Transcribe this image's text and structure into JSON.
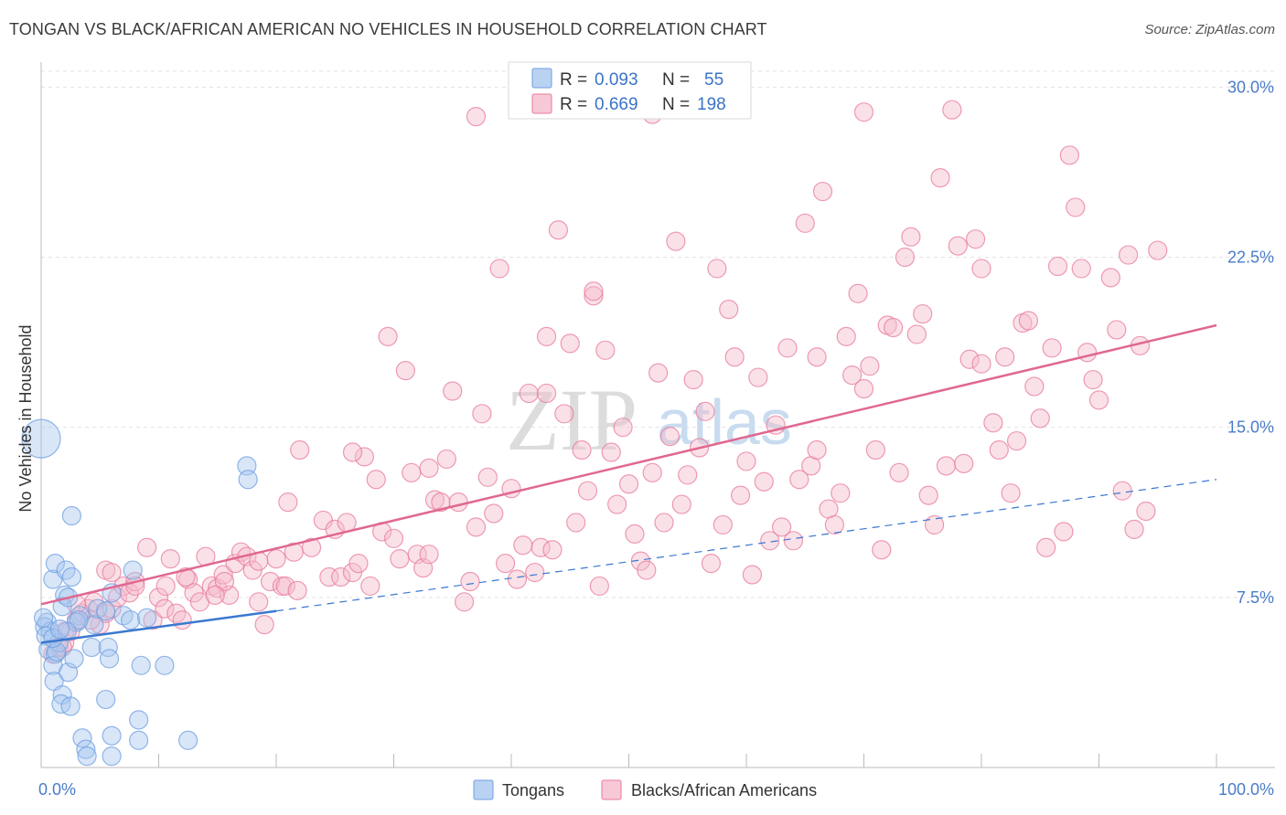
{
  "title": "TONGAN VS BLACK/AFRICAN AMERICAN NO VEHICLES IN HOUSEHOLD CORRELATION CHART",
  "source": "Source: ZipAtlas.com",
  "watermark": {
    "part1": "ZIP",
    "part2": "atlas"
  },
  "colors": {
    "blue": "#6f9fe0",
    "blue_fill": "#a9c7ef",
    "blue_line": "#3a78d0",
    "pink": "#e8799b",
    "pink_fill": "#f5bccd",
    "pink_line": "#e06890",
    "axis_text": "#4a7cc9"
  },
  "legend": {
    "rows": [
      {
        "r_label": "R =",
        "r_value": "0.093",
        "n_label": "N =",
        "n_value": "55"
      },
      {
        "r_label": "R =",
        "r_value": "0.669",
        "n_label": "N =",
        "n_value": "198"
      }
    ]
  },
  "bottom_legend": [
    "Tongans",
    "Blacks/African Americans"
  ],
  "chart_data": {
    "type": "scatter",
    "title": "TONGAN VS BLACK/AFRICAN AMERICAN NO VEHICLES IN HOUSEHOLD CORRELATION CHART",
    "xlabel": "",
    "ylabel": "No Vehicles in Household",
    "xlim": [
      0,
      100
    ],
    "ylim": [
      0,
      30.7
    ],
    "x_ticks": [
      "0.0%",
      "100.0%"
    ],
    "y_ticks": [
      {
        "value": 7.5,
        "label": "7.5%"
      },
      {
        "value": 15.0,
        "label": "15.0%"
      },
      {
        "value": 22.5,
        "label": "22.5%"
      },
      {
        "value": 30.0,
        "label": "30.0%"
      }
    ],
    "grid": true,
    "series": [
      {
        "name": "Tongans",
        "trend": {
          "x": [
            0,
            20
          ],
          "y": [
            5.5,
            6.9
          ],
          "dashed_to": [
            100,
            12.7
          ]
        },
        "points": [
          [
            0.0,
            14.5,
            "L"
          ],
          [
            0.5,
            6.4
          ],
          [
            0.3,
            6.2
          ],
          [
            0.8,
            6.0
          ],
          [
            0.4,
            5.8
          ],
          [
            0.6,
            5.2
          ],
          [
            1.2,
            5.0
          ],
          [
            1.5,
            5.5
          ],
          [
            1.0,
            8.3
          ],
          [
            1.2,
            9.0
          ],
          [
            2.0,
            7.6
          ],
          [
            2.1,
            8.7
          ],
          [
            2.6,
            8.4
          ],
          [
            1.8,
            7.1
          ],
          [
            2.3,
            7.5
          ],
          [
            3.3,
            6.7
          ],
          [
            3.0,
            6.4
          ],
          [
            4.5,
            6.3
          ],
          [
            4.8,
            7.0
          ],
          [
            6.0,
            7.7
          ],
          [
            7.0,
            6.7
          ],
          [
            7.6,
            6.5
          ],
          [
            9.0,
            6.6
          ],
          [
            2.6,
            11.1
          ],
          [
            1.0,
            4.5
          ],
          [
            1.1,
            3.8
          ],
          [
            2.3,
            4.2
          ],
          [
            2.8,
            4.8
          ],
          [
            1.3,
            5.1
          ],
          [
            4.3,
            5.3
          ],
          [
            5.7,
            5.3
          ],
          [
            5.8,
            4.8
          ],
          [
            1.8,
            3.2
          ],
          [
            1.7,
            2.8
          ],
          [
            2.5,
            2.7
          ],
          [
            5.5,
            3.0
          ],
          [
            8.5,
            4.5
          ],
          [
            10.5,
            4.5
          ],
          [
            8.3,
            2.1
          ],
          [
            3.5,
            1.3
          ],
          [
            6.0,
            1.4
          ],
          [
            8.3,
            1.2
          ],
          [
            12.5,
            1.2
          ],
          [
            3.8,
            0.8
          ],
          [
            3.9,
            0.5
          ],
          [
            6.0,
            0.5
          ],
          [
            17.5,
            13.3
          ],
          [
            17.6,
            12.7
          ],
          [
            7.8,
            8.7
          ],
          [
            5.5,
            6.9
          ],
          [
            3.2,
            6.5
          ],
          [
            2.2,
            6.0
          ],
          [
            1.0,
            5.7
          ],
          [
            0.2,
            6.6
          ],
          [
            1.6,
            6.1
          ]
        ]
      },
      {
        "name": "Blacks/African Americans",
        "trend": {
          "x": [
            0,
            100
          ],
          "y": [
            7.2,
            19.5
          ]
        },
        "points": [
          [
            1.0,
            5.0
          ],
          [
            1.5,
            5.3
          ],
          [
            2.0,
            5.5
          ],
          [
            2.5,
            6.0
          ],
          [
            3.0,
            6.5
          ],
          [
            3.5,
            6.8
          ],
          [
            4.0,
            7.0
          ],
          [
            4.5,
            7.3
          ],
          [
            5.0,
            6.3
          ],
          [
            5.5,
            6.8
          ],
          [
            6.0,
            7.0
          ],
          [
            6.5,
            7.5
          ],
          [
            7.0,
            8.0
          ],
          [
            7.5,
            7.7
          ],
          [
            8.0,
            8.2
          ],
          [
            9.0,
            9.7
          ],
          [
            5.5,
            8.7
          ],
          [
            9.5,
            6.5
          ],
          [
            10.0,
            7.5
          ],
          [
            10.5,
            7.0
          ],
          [
            11.0,
            9.2
          ],
          [
            11.5,
            6.8
          ],
          [
            12.0,
            6.5
          ],
          [
            12.5,
            8.3
          ],
          [
            13.0,
            7.7
          ],
          [
            13.5,
            7.3
          ],
          [
            14.0,
            9.3
          ],
          [
            14.5,
            8.0
          ],
          [
            15.0,
            7.9
          ],
          [
            15.5,
            8.5
          ],
          [
            16.0,
            7.6
          ],
          [
            16.5,
            9.0
          ],
          [
            17.0,
            9.5
          ],
          [
            17.5,
            9.3
          ],
          [
            18.0,
            8.7
          ],
          [
            18.5,
            7.3
          ],
          [
            19.0,
            6.3
          ],
          [
            19.5,
            8.2
          ],
          [
            20.0,
            9.2
          ],
          [
            20.5,
            8.0
          ],
          [
            21.0,
            11.7
          ],
          [
            21.5,
            9.5
          ],
          [
            22.0,
            14.0
          ],
          [
            23.0,
            9.7
          ],
          [
            24.0,
            10.9
          ],
          [
            24.5,
            8.4
          ],
          [
            25.0,
            10.5
          ],
          [
            25.5,
            8.4
          ],
          [
            26.0,
            10.8
          ],
          [
            26.5,
            8.6
          ],
          [
            27.0,
            9.0
          ],
          [
            27.5,
            13.7
          ],
          [
            28.0,
            8.0
          ],
          [
            28.5,
            12.7
          ],
          [
            29.0,
            10.4
          ],
          [
            29.5,
            19.0
          ],
          [
            30.0,
            10.1
          ],
          [
            30.5,
            9.2
          ],
          [
            31.0,
            17.5
          ],
          [
            31.5,
            13.0
          ],
          [
            32.0,
            9.4
          ],
          [
            32.5,
            8.8
          ],
          [
            33.0,
            13.2
          ],
          [
            33.5,
            11.8
          ],
          [
            34.0,
            11.7
          ],
          [
            34.5,
            13.6
          ],
          [
            35.0,
            16.6
          ],
          [
            35.5,
            11.7
          ],
          [
            36.0,
            7.3
          ],
          [
            36.5,
            8.2
          ],
          [
            37.0,
            10.6
          ],
          [
            37.5,
            15.6
          ],
          [
            38.0,
            12.8
          ],
          [
            38.5,
            11.2
          ],
          [
            39.0,
            22.0
          ],
          [
            39.5,
            9.0
          ],
          [
            40.0,
            12.3
          ],
          [
            40.5,
            8.3
          ],
          [
            41.0,
            9.8
          ],
          [
            41.5,
            16.5
          ],
          [
            42.0,
            8.6
          ],
          [
            42.5,
            9.7
          ],
          [
            43.0,
            19.0
          ],
          [
            43.5,
            9.6
          ],
          [
            44.0,
            23.7
          ],
          [
            44.5,
            15.6
          ],
          [
            45.0,
            18.7
          ],
          [
            45.5,
            10.8
          ],
          [
            46.0,
            14.0
          ],
          [
            46.5,
            12.2
          ],
          [
            47.0,
            20.8
          ],
          [
            47.5,
            8.0
          ],
          [
            48.0,
            18.4
          ],
          [
            48.5,
            13.9
          ],
          [
            49.0,
            11.6
          ],
          [
            49.5,
            15.0
          ],
          [
            50.0,
            12.5
          ],
          [
            50.5,
            10.3
          ],
          [
            51.0,
            9.1
          ],
          [
            51.5,
            8.7
          ],
          [
            52.0,
            13.0
          ],
          [
            52.5,
            17.4
          ],
          [
            53.0,
            10.8
          ],
          [
            53.5,
            14.6
          ],
          [
            54.0,
            23.2
          ],
          [
            54.5,
            11.6
          ],
          [
            55.0,
            12.9
          ],
          [
            55.5,
            17.1
          ],
          [
            56.0,
            14.1
          ],
          [
            56.5,
            15.7
          ],
          [
            57.0,
            9.0
          ],
          [
            57.5,
            22.0
          ],
          [
            58.0,
            10.7
          ],
          [
            58.5,
            20.2
          ],
          [
            59.0,
            18.1
          ],
          [
            59.5,
            12.0
          ],
          [
            60.0,
            13.5
          ],
          [
            60.5,
            8.5
          ],
          [
            61.0,
            17.2
          ],
          [
            61.5,
            12.6
          ],
          [
            62.0,
            10.0
          ],
          [
            62.5,
            15.1
          ],
          [
            63.0,
            10.6
          ],
          [
            63.5,
            18.5
          ],
          [
            64.0,
            10.0
          ],
          [
            64.5,
            12.7
          ],
          [
            65.0,
            24.0
          ],
          [
            65.5,
            13.3
          ],
          [
            66.0,
            18.1
          ],
          [
            66.5,
            25.4
          ],
          [
            67.0,
            11.4
          ],
          [
            67.5,
            10.7
          ],
          [
            68.0,
            12.1
          ],
          [
            68.5,
            19.0
          ],
          [
            69.0,
            17.3
          ],
          [
            69.5,
            20.9
          ],
          [
            70.0,
            16.7
          ],
          [
            70.5,
            17.7
          ],
          [
            71.0,
            14.0
          ],
          [
            71.5,
            9.6
          ],
          [
            72.0,
            19.5
          ],
          [
            72.5,
            19.4
          ],
          [
            73.0,
            13.0
          ],
          [
            73.5,
            22.5
          ],
          [
            74.0,
            23.4
          ],
          [
            74.5,
            19.1
          ],
          [
            75.0,
            20.0
          ],
          [
            75.5,
            12.0
          ],
          [
            76.0,
            10.7
          ],
          [
            76.5,
            26.0
          ],
          [
            77.0,
            13.3
          ],
          [
            77.5,
            29.0
          ],
          [
            78.0,
            23.0
          ],
          [
            78.5,
            13.4
          ],
          [
            79.0,
            18.0
          ],
          [
            79.5,
            23.3
          ],
          [
            80.0,
            17.8
          ],
          [
            81.0,
            15.2
          ],
          [
            81.5,
            14.0
          ],
          [
            82.0,
            18.1
          ],
          [
            82.5,
            12.1
          ],
          [
            83.0,
            14.4
          ],
          [
            83.5,
            19.6
          ],
          [
            84.0,
            19.7
          ],
          [
            84.5,
            16.8
          ],
          [
            85.0,
            15.4
          ],
          [
            85.5,
            9.7
          ],
          [
            86.0,
            18.5
          ],
          [
            86.5,
            22.1
          ],
          [
            87.0,
            10.4
          ],
          [
            87.5,
            27.0
          ],
          [
            88.0,
            24.7
          ],
          [
            88.5,
            22.0
          ],
          [
            89.0,
            18.3
          ],
          [
            89.5,
            17.1
          ],
          [
            90.0,
            16.2
          ],
          [
            91.0,
            21.6
          ],
          [
            91.5,
            19.3
          ],
          [
            92.0,
            12.2
          ],
          [
            92.5,
            22.6
          ],
          [
            93.0,
            10.5
          ],
          [
            93.5,
            18.6
          ],
          [
            94.0,
            11.3
          ],
          [
            95.0,
            22.8
          ],
          [
            37.0,
            28.7
          ],
          [
            52.0,
            28.8
          ],
          [
            70.0,
            28.9
          ],
          [
            80.0,
            22.0
          ],
          [
            66.0,
            14.0
          ],
          [
            47.0,
            21.0
          ],
          [
            43.0,
            16.5
          ],
          [
            26.5,
            13.9
          ],
          [
            33.0,
            9.4
          ],
          [
            20.8,
            8.0
          ],
          [
            15.6,
            8.2
          ],
          [
            10.6,
            8.0
          ],
          [
            6.0,
            8.6
          ],
          [
            3.0,
            7.2
          ],
          [
            2.0,
            6.0
          ],
          [
            1.8,
            5.3
          ],
          [
            4.2,
            6.5
          ],
          [
            8.0,
            8.0
          ],
          [
            12.3,
            8.4
          ],
          [
            14.8,
            7.6
          ],
          [
            18.5,
            9.1
          ],
          [
            21.8,
            7.8
          ]
        ]
      }
    ]
  }
}
